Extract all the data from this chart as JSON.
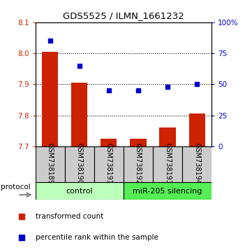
{
  "title": "GDS5525 / ILMN_1661232",
  "samples": [
    "GSM738189",
    "GSM738190",
    "GSM738191",
    "GSM738192",
    "GSM738193",
    "GSM738194"
  ],
  "red_values": [
    8.005,
    7.905,
    7.725,
    7.725,
    7.76,
    7.805
  ],
  "blue_pct": [
    85,
    65,
    45,
    45,
    48,
    50
  ],
  "ylim_left": [
    7.7,
    8.1
  ],
  "ylim_right": [
    0,
    100
  ],
  "yticks_left": [
    7.7,
    7.8,
    7.9,
    8.0,
    8.1
  ],
  "yticks_right": [
    0,
    25,
    50,
    75,
    100
  ],
  "bar_bottom": 7.7,
  "bar_width": 0.55,
  "bar_color": "#cc2200",
  "dot_color": "#0000cc",
  "protocol_label_control": "control",
  "protocol_label_silencing": "miR-205 silencing",
  "control_color": "#bbffbb",
  "silencing_color": "#55ee55",
  "legend_red": "transformed count",
  "legend_blue": "percentile rank within the sample",
  "box_bg": "#cccccc"
}
